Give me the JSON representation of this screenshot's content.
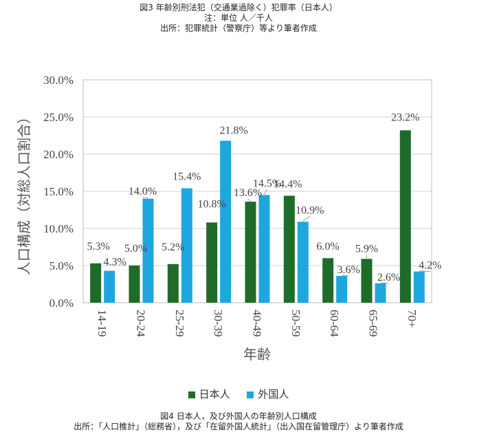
{
  "top_caption": {
    "line1": "図3 年齢別刑法犯（交通業過除く）犯罪率（日本人）",
    "line2": "注：単位 人／千人",
    "line3": "出所：犯罪統計（警察庁）等より筆者作成"
  },
  "bottom_caption": {
    "line1": "図4 日本人，及び外国人の年齢別人口構成",
    "line2": "出所：「人口推計」（総務省），及び「在留外国人統計」（出入国在留管理庁）より筆者作成"
  },
  "colors": {
    "japanese": "#1f6b2a",
    "foreign": "#1ea6df",
    "grid": "#cfcfcf"
  },
  "chart_data": {
    "type": "bar",
    "categories": [
      "14-19",
      "20-24",
      "25-29",
      "30-39",
      "40-49",
      "50-59",
      "60-64",
      "65-69",
      "70+"
    ],
    "series": [
      {
        "name": "日本人",
        "values": [
          5.3,
          5.0,
          5.2,
          10.8,
          13.6,
          14.4,
          6.0,
          5.9,
          23.2
        ],
        "labels": [
          "5.3%",
          "5.0%",
          "5.2%",
          "10.8%",
          "13.6%",
          "14.4%",
          "6.0%",
          "5.9%",
          "23.2%"
        ]
      },
      {
        "name": "外国人",
        "values": [
          4.3,
          14.0,
          15.4,
          21.8,
          14.5,
          10.9,
          3.6,
          2.6,
          4.2
        ],
        "labels": [
          "4.3%",
          "14.0%",
          "15.4%",
          "21.8%",
          "14.5%",
          "10.9%",
          "3.6%",
          "2.6%",
          "4.2%"
        ]
      }
    ],
    "ylim": [
      0,
      30
    ],
    "yticks": [
      "0.0%",
      "5.0%",
      "10.0%",
      "15.0%",
      "20.0%",
      "25.0%",
      "30.0%"
    ],
    "ytick_values": [
      0,
      5,
      10,
      15,
      20,
      25,
      30
    ],
    "xlabel": "年齢",
    "ylabel": "人口構成（対総人口割合）",
    "legend_position": "bottom"
  }
}
